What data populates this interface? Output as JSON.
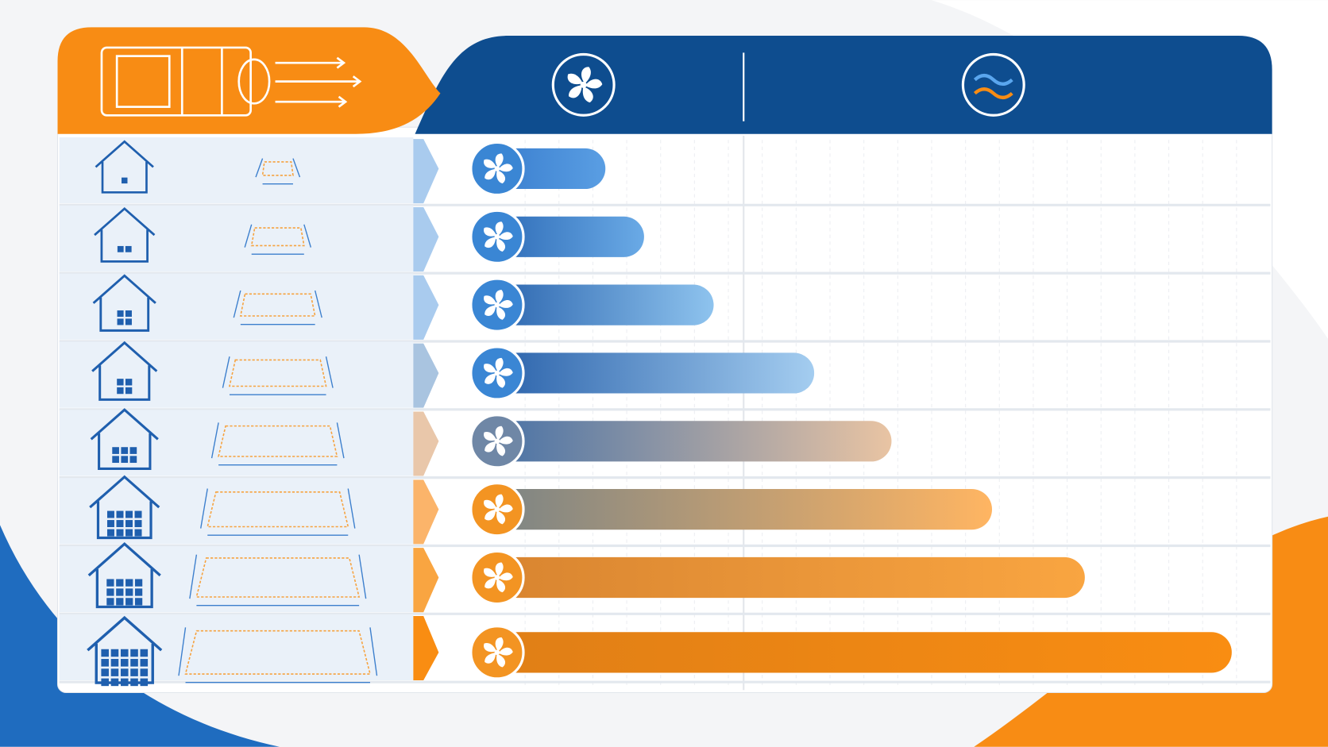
{
  "chart_data": {
    "type": "bar",
    "orientation": "horizontal",
    "values": [
      14,
      19,
      28,
      41,
      51,
      64,
      76,
      95
    ],
    "xlim": [
      0,
      100
    ],
    "colors": [
      [
        "#3a7fcf",
        "#5a9ee3"
      ],
      [
        "#2f6db8",
        "#6aaae6"
      ],
      [
        "#2d67b0",
        "#8ec3ee"
      ],
      [
        "#2c64ac",
        "#a4cdf0"
      ],
      [
        "#4a73a6",
        "#e9c4a3"
      ],
      [
        "#7d8585",
        "#ffb562"
      ],
      [
        "#d98530",
        "#f9a541"
      ],
      [
        "#e07f16",
        "#f98d12"
      ]
    ]
  }
}
